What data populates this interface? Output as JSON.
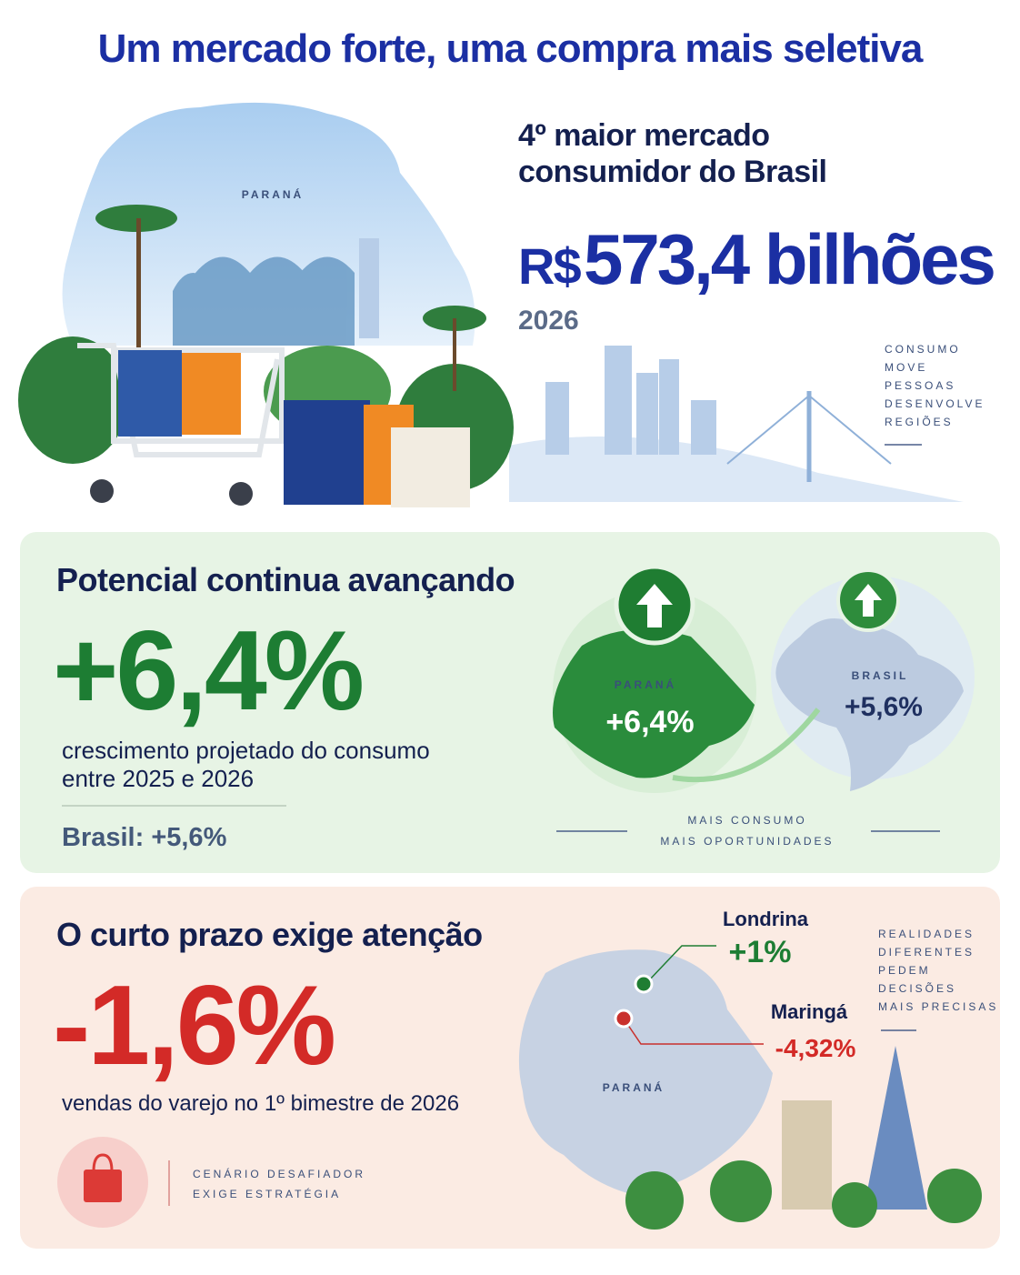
{
  "header": {
    "title": "Um mercado forte, uma compra mais seletiva"
  },
  "hero": {
    "illustration_label": "PARANÁ",
    "heading_lines": [
      "4º maior mercado",
      "consumidor do Brasil"
    ],
    "currency": "R$",
    "amount": "573,4 bilhões",
    "year": "2026",
    "tagline": [
      "CONSUMO",
      "MOVE",
      "PESSOAS",
      "DESENVOLVE",
      "REGIÕES"
    ]
  },
  "growth": {
    "heading": "Potencial continua avançando",
    "value": "+6,4%",
    "description_lines": [
      "crescimento projetado do consumo",
      "entre 2025 e 2026"
    ],
    "comparison": "Brasil: +5,6%",
    "map": {
      "parana_label": "PARANÁ",
      "parana_value": "+6,4%",
      "brasil_label": "BRASIL",
      "brasil_value": "+5,6%"
    },
    "footer": [
      "MAIS CONSUMO",
      "MAIS OPORTUNIDADES"
    ]
  },
  "short_term": {
    "heading": "O curto prazo exige atenção",
    "value": "-1,6%",
    "description": "vendas do varejo no 1º bimestre de 2026",
    "note": [
      "CENÁRIO DESAFIADOR",
      "EXIGE ESTRATÉGIA"
    ],
    "map": {
      "label": "PARANÁ",
      "cities": [
        {
          "name": "Londrina",
          "value": "+1%"
        },
        {
          "name": "Maringá",
          "value": "-4,32%"
        }
      ]
    },
    "tagline": [
      "REALIDADES",
      "DIFERENTES",
      "PEDEM",
      "DECISÕES",
      "MAIS PRECISAS"
    ]
  }
}
